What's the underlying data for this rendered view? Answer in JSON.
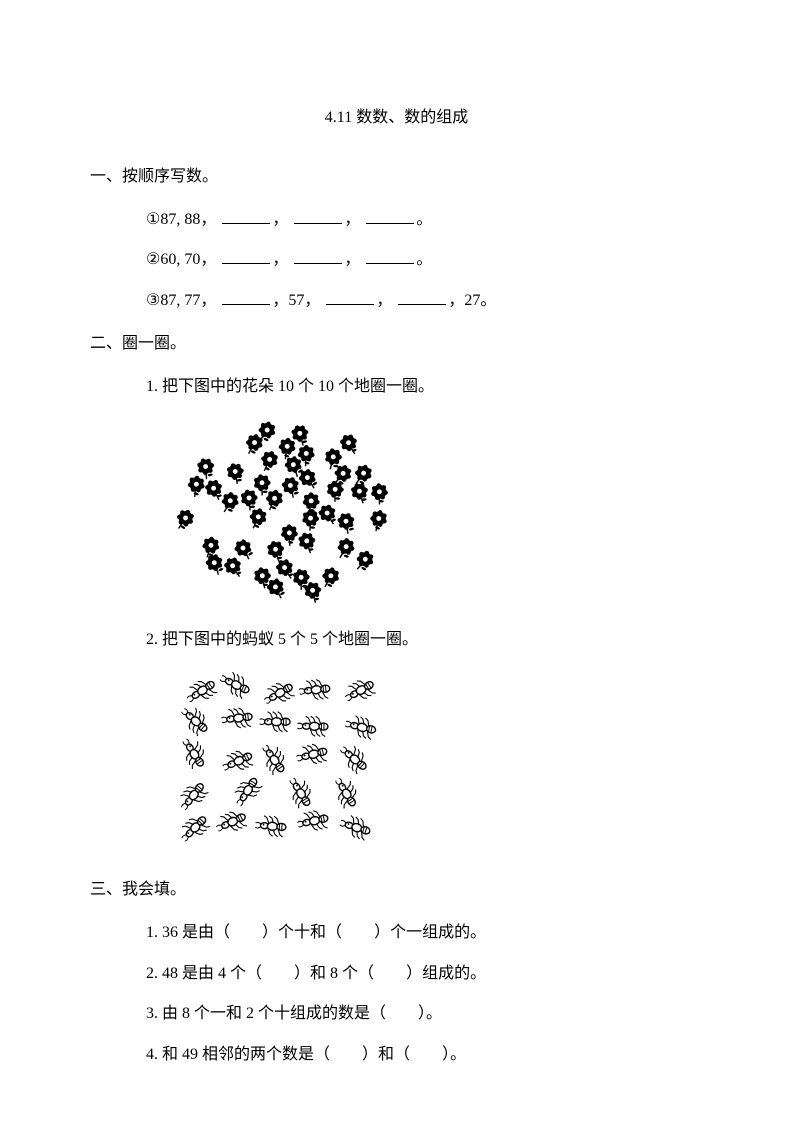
{
  "title": "4.11 数数、数的组成",
  "sections": {
    "s1": {
      "heading": "一、按顺序写数。",
      "items": {
        "i1": {
          "num": "①",
          "start": "87, 88，"
        },
        "i2": {
          "num": "②",
          "start": "60, 70，"
        },
        "i3": {
          "num": "③",
          "start": "87, 77，",
          "mid": "，57，",
          "end": "，27。"
        }
      }
    },
    "s2": {
      "heading": "二、圈一圈。",
      "q1": "1. 把下图中的花朵 10 个 10 个地圈一圈。",
      "q2": "2. 把下图中的蚂蚁 5 个 5 个地圈一圈。",
      "flowers": {
        "count": 46,
        "color": "#000000",
        "flower_radius": 7,
        "stem_color": "#000000"
      },
      "ants": {
        "count": 24,
        "color": "#000000"
      }
    },
    "s3": {
      "heading": "三、我会填。",
      "q1": {
        "a": "1. 36 是由（",
        "b": "）个十和（",
        "c": "）个一组成的。"
      },
      "q2": {
        "a": "2. 48 是由 4 个（",
        "b": "）和 8 个（",
        "c": "）组成的。"
      },
      "q3": {
        "a": "3. 由 8 个一和 2 个十组成的数是（",
        "b": "）。"
      },
      "q4": {
        "a": "4. 和 49 相邻的两个数是（",
        "b": "）和（",
        "c": "）。"
      }
    }
  },
  "punct": {
    "comma": "，",
    "period": "。",
    "space": "　　"
  }
}
